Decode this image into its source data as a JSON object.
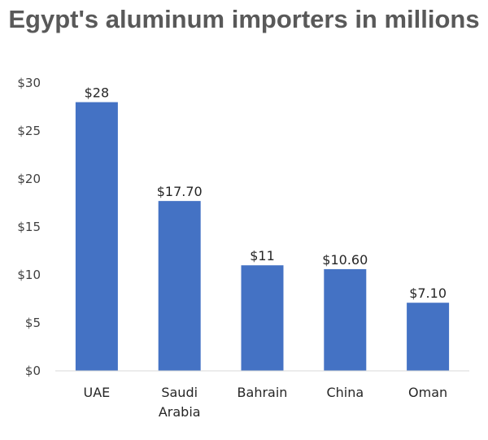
{
  "chart_data": {
    "type": "bar",
    "title": "Egypt's aluminum importers in millions",
    "categories": [
      "UAE",
      "Saudi Arabia",
      "Bahrain",
      "China",
      "Oman"
    ],
    "values": [
      28,
      17.7,
      11,
      10.6,
      7.1
    ],
    "data_labels": [
      "$28",
      "$17.70",
      "$11",
      "$10.60",
      "$7.10"
    ],
    "y_ticks": [
      "$0",
      "$5",
      "$10",
      "$15",
      "$20",
      "$25",
      "$30"
    ],
    "ylim": [
      0,
      30
    ],
    "xlabel": "",
    "ylabel": "",
    "grid": false,
    "bar_color": "#4472C4"
  }
}
